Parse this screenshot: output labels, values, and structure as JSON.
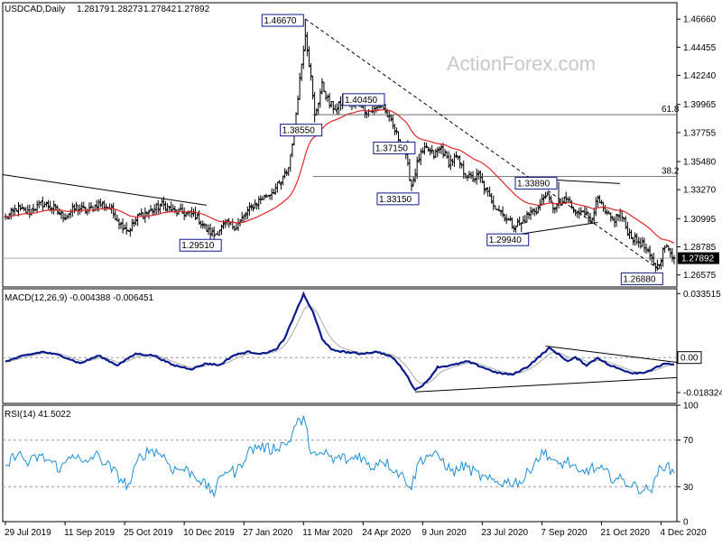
{
  "chart_data": [
    {
      "type": "candlestick",
      "header": {
        "symbol": "USDCAD,Daily",
        "open": "1.28179",
        "high": "1.28273",
        "low": "1.27842",
        "close": "1.27892"
      },
      "watermark": "ActionForex.com",
      "ylim": [
        1.2563,
        1.4795
      ],
      "y_ticks": [
        "1.46660",
        "1.44455",
        "1.42240",
        "1.39965",
        "1.37755",
        "1.35480",
        "1.33270",
        "1.30995",
        "1.28785",
        "1.26575"
      ],
      "y_tick_values": [
        1.4666,
        1.44455,
        1.4224,
        1.39965,
        1.37755,
        1.3548,
        1.3327,
        1.30995,
        1.28785,
        1.26575
      ],
      "current_price": {
        "label": "1.27892",
        "value": 1.27892
      },
      "price_labels": [
        {
          "text": "1.46670",
          "date_index": 161,
          "value": 1.4667
        },
        {
          "text": "1.40450",
          "date_index": 187,
          "value": 1.4045
        },
        {
          "text": "1.38550",
          "date_index": 166,
          "value": 1.3855
        },
        {
          "text": "1.37150",
          "date_index": 216,
          "value": 1.3715
        },
        {
          "text": "1.33150",
          "date_index": 218,
          "value": 1.3315
        },
        {
          "text": "1.29510",
          "date_index": 112,
          "value": 1.2951
        },
        {
          "text": "1.29940",
          "date_index": 277,
          "value": 1.2994
        },
        {
          "text": "1.33890",
          "date_index": 297,
          "value": 1.3389
        },
        {
          "text": "1.26880",
          "date_index": 349,
          "value": 1.2688
        }
      ],
      "fib_levels": [
        {
          "label": "61.8",
          "value": 1.3916
        },
        {
          "label": "38.2",
          "value": 1.3431
        }
      ],
      "x_ticks": [
        "29 Jul 2019",
        "11 Sep 2019",
        "25 Oct 2019",
        "10 Dec 2019",
        "27 Jan 2020",
        "11 Mar 2020",
        "24 Apr 2020",
        "9 Jun 2020",
        "23 Jul 2020",
        "7 Sep 2020",
        "21 Oct 2020",
        "4 Dec 2020"
      ],
      "x_tick_indices": [
        0,
        32,
        64,
        96,
        128,
        160,
        192,
        224,
        256,
        288,
        320,
        352
      ],
      "num_bars": 360,
      "moving_average": "red",
      "anchors": [
        [
          0,
          1.3105
        ],
        [
          6,
          1.318
        ],
        [
          12,
          1.315
        ],
        [
          20,
          1.322
        ],
        [
          26,
          1.3175
        ],
        [
          32,
          1.3115
        ],
        [
          38,
          1.319
        ],
        [
          44,
          1.316
        ],
        [
          50,
          1.322
        ],
        [
          56,
          1.3185
        ],
        [
          62,
          1.3055
        ],
        [
          66,
          1.301
        ],
        [
          72,
          1.3125
        ],
        [
          78,
          1.3155
        ],
        [
          84,
          1.321
        ],
        [
          90,
          1.316
        ],
        [
          96,
          1.314
        ],
        [
          102,
          1.313
        ],
        [
          108,
          1.301
        ],
        [
          112,
          1.297
        ],
        [
          118,
          1.306
        ],
        [
          124,
          1.304
        ],
        [
          130,
          1.316
        ],
        [
          136,
          1.324
        ],
        [
          142,
          1.33
        ],
        [
          148,
          1.338
        ],
        [
          152,
          1.35
        ],
        [
          155,
          1.38
        ],
        [
          158,
          1.42
        ],
        [
          161,
          1.456
        ],
        [
          164,
          1.42
        ],
        [
          166,
          1.39
        ],
        [
          170,
          1.415
        ],
        [
          174,
          1.4
        ],
        [
          178,
          1.396
        ],
        [
          182,
          1.405
        ],
        [
          186,
          1.398
        ],
        [
          190,
          1.402
        ],
        [
          194,
          1.394
        ],
        [
          198,
          1.395
        ],
        [
          202,
          1.4
        ],
        [
          206,
          1.388
        ],
        [
          210,
          1.376
        ],
        [
          214,
          1.365
        ],
        [
          218,
          1.336
        ],
        [
          222,
          1.358
        ],
        [
          226,
          1.365
        ],
        [
          230,
          1.36
        ],
        [
          234,
          1.366
        ],
        [
          238,
          1.354
        ],
        [
          242,
          1.358
        ],
        [
          246,
          1.347
        ],
        [
          250,
          1.341
        ],
        [
          254,
          1.344
        ],
        [
          258,
          1.332
        ],
        [
          262,
          1.322
        ],
        [
          268,
          1.312
        ],
        [
          272,
          1.305
        ],
        [
          277,
          1.306
        ],
        [
          282,
          1.315
        ],
        [
          286,
          1.318
        ],
        [
          290,
          1.33
        ],
        [
          294,
          1.319
        ],
        [
          298,
          1.322
        ],
        [
          302,
          1.325
        ],
        [
          306,
          1.313
        ],
        [
          310,
          1.318
        ],
        [
          314,
          1.308
        ],
        [
          318,
          1.325
        ],
        [
          322,
          1.314
        ],
        [
          326,
          1.308
        ],
        [
          330,
          1.315
        ],
        [
          334,
          1.3
        ],
        [
          338,
          1.293
        ],
        [
          342,
          1.29
        ],
        [
          346,
          1.279
        ],
        [
          350,
          1.272
        ],
        [
          354,
          1.288
        ],
        [
          357,
          1.284
        ],
        [
          359,
          1.279
        ]
      ]
    },
    {
      "type": "line",
      "title": "MACD(12,26,9) -0.004388 -0.006451",
      "ylim": [
        -0.024,
        0.036
      ],
      "y_ticks": [
        "0.033515",
        "0.00",
        "-0.018324"
      ],
      "y_tick_values": [
        0.033515,
        0,
        -0.018324
      ],
      "current_labels": [
        {
          "label": "0.00",
          "value": 0
        }
      ],
      "macd_color": "#0b1a8c",
      "signal_color": "#aaaaaa",
      "anchors": [
        [
          0,
          -0.002
        ],
        [
          10,
          0.001
        ],
        [
          20,
          0.003
        ],
        [
          30,
          0.001
        ],
        [
          40,
          -0.003
        ],
        [
          50,
          0.001
        ],
        [
          60,
          -0.004
        ],
        [
          70,
          0.002
        ],
        [
          80,
          0.001
        ],
        [
          90,
          -0.004
        ],
        [
          100,
          -0.006
        ],
        [
          108,
          -0.003
        ],
        [
          115,
          -0.004
        ],
        [
          122,
          0.001
        ],
        [
          130,
          0.003
        ],
        [
          138,
          0.002
        ],
        [
          145,
          0.004
        ],
        [
          150,
          0.01
        ],
        [
          155,
          0.022
        ],
        [
          160,
          0.033
        ],
        [
          165,
          0.024
        ],
        [
          170,
          0.01
        ],
        [
          175,
          0.004
        ],
        [
          182,
          0.003
        ],
        [
          190,
          0.002
        ],
        [
          200,
          0.003
        ],
        [
          208,
          0.0
        ],
        [
          214,
          -0.007
        ],
        [
          220,
          -0.017
        ],
        [
          226,
          -0.013
        ],
        [
          232,
          -0.005
        ],
        [
          240,
          -0.004
        ],
        [
          248,
          -0.002
        ],
        [
          256,
          -0.005
        ],
        [
          264,
          -0.008
        ],
        [
          272,
          -0.009
        ],
        [
          280,
          -0.005
        ],
        [
          286,
          0.0
        ],
        [
          292,
          0.005
        ],
        [
          298,
          0.001
        ],
        [
          302,
          -0.002
        ],
        [
          306,
          0.0
        ],
        [
          312,
          -0.004
        ],
        [
          318,
          0.0
        ],
        [
          324,
          -0.004
        ],
        [
          330,
          -0.006
        ],
        [
          336,
          -0.008
        ],
        [
          342,
          -0.008
        ],
        [
          348,
          -0.006
        ],
        [
          354,
          -0.003
        ],
        [
          359,
          -0.004
        ]
      ]
    },
    {
      "type": "line",
      "title": "RSI(14) 41.5022",
      "ylim": [
        0,
        100
      ],
      "y_ticks": [
        "100",
        "70",
        "30",
        "0"
      ],
      "y_tick_values": [
        100,
        70,
        30,
        0
      ],
      "line_color": "#1e8fd6",
      "anchors": [
        [
          0,
          45
        ],
        [
          6,
          60
        ],
        [
          12,
          50
        ],
        [
          18,
          56
        ],
        [
          24,
          52
        ],
        [
          30,
          45
        ],
        [
          36,
          60
        ],
        [
          42,
          48
        ],
        [
          48,
          58
        ],
        [
          54,
          50
        ],
        [
          60,
          40
        ],
        [
          66,
          30
        ],
        [
          72,
          55
        ],
        [
          78,
          62
        ],
        [
          84,
          58
        ],
        [
          90,
          45
        ],
        [
          96,
          45
        ],
        [
          102,
          40
        ],
        [
          108,
          30
        ],
        [
          112,
          25
        ],
        [
          118,
          45
        ],
        [
          124,
          42
        ],
        [
          130,
          60
        ],
        [
          136,
          65
        ],
        [
          142,
          62
        ],
        [
          148,
          66
        ],
        [
          152,
          68
        ],
        [
          156,
          84
        ],
        [
          160,
          88
        ],
        [
          164,
          62
        ],
        [
          168,
          54
        ],
        [
          172,
          60
        ],
        [
          176,
          52
        ],
        [
          180,
          56
        ],
        [
          184,
          52
        ],
        [
          190,
          58
        ],
        [
          196,
          46
        ],
        [
          202,
          54
        ],
        [
          208,
          46
        ],
        [
          214,
          38
        ],
        [
          218,
          30
        ],
        [
          222,
          52
        ],
        [
          228,
          58
        ],
        [
          234,
          54
        ],
        [
          240,
          42
        ],
        [
          246,
          48
        ],
        [
          252,
          42
        ],
        [
          258,
          36
        ],
        [
          264,
          34
        ],
        [
          272,
          34
        ],
        [
          278,
          35
        ],
        [
          284,
          52
        ],
        [
          290,
          60
        ],
        [
          296,
          48
        ],
        [
          302,
          52
        ],
        [
          308,
          40
        ],
        [
          314,
          46
        ],
        [
          320,
          44
        ],
        [
          326,
          38
        ],
        [
          332,
          35
        ],
        [
          338,
          30
        ],
        [
          344,
          27
        ],
        [
          348,
          30
        ],
        [
          352,
          50
        ],
        [
          356,
          46
        ],
        [
          359,
          41.5
        ]
      ]
    }
  ]
}
